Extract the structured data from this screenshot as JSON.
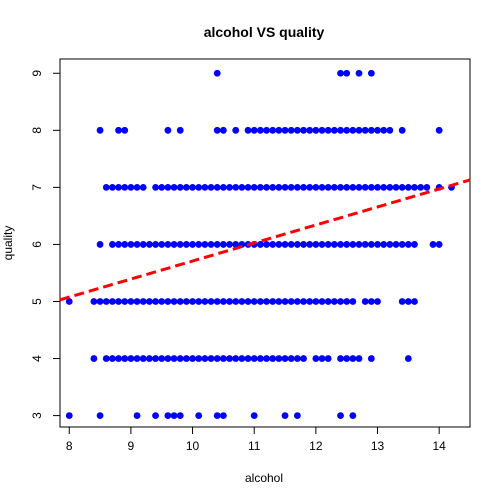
{
  "chart_data": {
    "type": "scatter",
    "title": "alcohol VS quality",
    "xlabel": "alcohol",
    "ylabel": "quality",
    "xlim": [
      7.85,
      14.5
    ],
    "ylim": [
      2.8,
      9.25
    ],
    "x_ticks": [
      8,
      9,
      10,
      11,
      12,
      13,
      14
    ],
    "y_ticks": [
      3,
      4,
      5,
      6,
      7,
      8,
      9
    ],
    "grid": false,
    "point_color": "#0000ff",
    "trend_color": "#ff0000",
    "rows": [
      {
        "quality": 9,
        "x": [
          10.4,
          12.4,
          12.5,
          12.7,
          12.9
        ]
      },
      {
        "quality": 8,
        "x": [
          8.5,
          8.8,
          8.9,
          9.6,
          9.8,
          10.4,
          10.5,
          10.7,
          10.9,
          11.0,
          11.1,
          11.2,
          11.3,
          11.4,
          11.5,
          11.6,
          11.7,
          11.8,
          11.9,
          12.0,
          12.1,
          12.2,
          12.3,
          12.4,
          12.5,
          12.6,
          12.7,
          12.8,
          12.9,
          13.0,
          13.1,
          13.2,
          13.4,
          14.0
        ]
      },
      {
        "quality": 7,
        "x": [
          8.6,
          8.7,
          8.8,
          8.9,
          9.0,
          9.1,
          9.2,
          9.4,
          9.5,
          9.6,
          9.7,
          9.8,
          9.9,
          10.0,
          10.1,
          10.2,
          10.3,
          10.4,
          10.5,
          10.6,
          10.7,
          10.8,
          10.9,
          11.0,
          11.1,
          11.2,
          11.3,
          11.4,
          11.5,
          11.6,
          11.7,
          11.8,
          11.9,
          12.0,
          12.1,
          12.2,
          12.3,
          12.4,
          12.5,
          12.6,
          12.7,
          12.8,
          12.9,
          13.0,
          13.1,
          13.2,
          13.3,
          13.4,
          13.5,
          13.6,
          13.7,
          13.8,
          14.0,
          14.2
        ]
      },
      {
        "quality": 6,
        "x": [
          8.5,
          8.7,
          8.8,
          8.9,
          9.0,
          9.1,
          9.2,
          9.3,
          9.4,
          9.5,
          9.6,
          9.7,
          9.8,
          9.9,
          10.0,
          10.1,
          10.2,
          10.3,
          10.4,
          10.5,
          10.6,
          10.7,
          10.8,
          10.9,
          11.0,
          11.1,
          11.2,
          11.3,
          11.4,
          11.5,
          11.6,
          11.7,
          11.8,
          11.9,
          12.0,
          12.1,
          12.2,
          12.3,
          12.4,
          12.5,
          12.6,
          12.7,
          12.8,
          12.9,
          13.0,
          13.1,
          13.2,
          13.3,
          13.4,
          13.5,
          13.6,
          13.9,
          14.0
        ]
      },
      {
        "quality": 5,
        "x": [
          8.0,
          8.4,
          8.5,
          8.6,
          8.7,
          8.8,
          8.9,
          9.0,
          9.1,
          9.2,
          9.3,
          9.4,
          9.5,
          9.6,
          9.7,
          9.8,
          9.9,
          10.0,
          10.1,
          10.2,
          10.3,
          10.4,
          10.5,
          10.6,
          10.7,
          10.8,
          10.9,
          11.0,
          11.1,
          11.2,
          11.3,
          11.4,
          11.5,
          11.6,
          11.7,
          11.8,
          11.9,
          12.0,
          12.1,
          12.2,
          12.3,
          12.4,
          12.5,
          12.6,
          12.8,
          12.9,
          13.0,
          13.4,
          13.5,
          13.6
        ]
      },
      {
        "quality": 4,
        "x": [
          8.4,
          8.6,
          8.7,
          8.8,
          8.9,
          9.0,
          9.1,
          9.2,
          9.3,
          9.4,
          9.5,
          9.6,
          9.7,
          9.8,
          9.9,
          10.0,
          10.1,
          10.2,
          10.3,
          10.4,
          10.5,
          10.6,
          10.7,
          10.8,
          10.9,
          11.0,
          11.1,
          11.2,
          11.3,
          11.4,
          11.5,
          11.6,
          11.7,
          11.8,
          12.0,
          12.1,
          12.2,
          12.4,
          12.5,
          12.6,
          12.7,
          12.9,
          13.5
        ]
      },
      {
        "quality": 3,
        "x": [
          8.0,
          8.5,
          9.1,
          9.4,
          9.6,
          9.7,
          9.8,
          10.1,
          10.4,
          10.5,
          11.0,
          11.5,
          11.7,
          12.4,
          12.6
        ]
      }
    ],
    "trend_line": {
      "style": "dashed",
      "points": [
        [
          7.85,
          5.03
        ],
        [
          14.5,
          7.13
        ]
      ]
    }
  }
}
